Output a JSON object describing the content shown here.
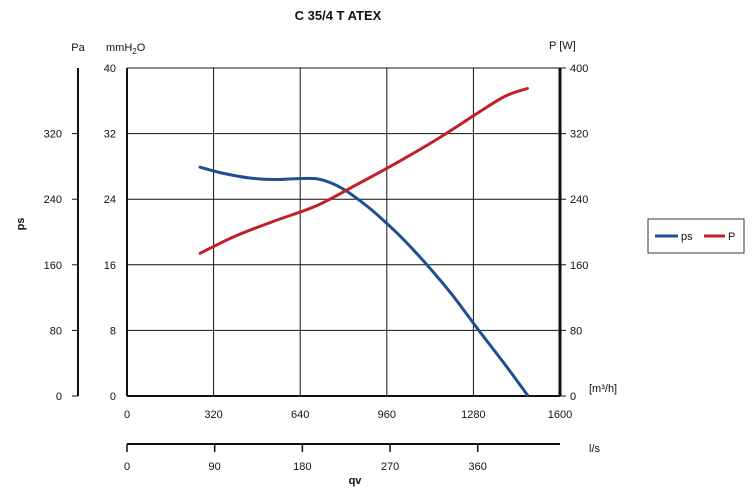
{
  "chart_data": {
    "type": "line",
    "title": "C 35/4 T ATEX",
    "left_axis_pa": {
      "unit": "Pa",
      "ticks": [
        "0",
        "80",
        "160",
        "240",
        "320"
      ],
      "values": [
        0,
        80,
        160,
        240,
        320
      ]
    },
    "left_axis_mmh2o": {
      "unit_main": "mmH",
      "unit_sub": "2",
      "unit_end": "O",
      "ticks": [
        "0",
        "8",
        "16",
        "24",
        "32",
        "40"
      ],
      "values": [
        0,
        8,
        16,
        24,
        32,
        40
      ]
    },
    "ylabel": "ps",
    "right_axis": {
      "unit": "P [W]",
      "ticks": [
        "0",
        "80",
        "160",
        "240",
        "320",
        "400"
      ],
      "values": [
        0,
        80,
        160,
        240,
        320,
        400
      ]
    },
    "x_axis_m3h": {
      "unit": "[m³/h]",
      "ticks": [
        "0",
        "320",
        "640",
        "960",
        "1280",
        "1600"
      ],
      "values": [
        0,
        320,
        640,
        960,
        1280,
        1600
      ]
    },
    "x_axis_ls": {
      "unit": "l/s",
      "ticks": [
        "0",
        "90",
        "180",
        "270",
        "360"
      ],
      "values": [
        0,
        90,
        180,
        270,
        360
      ]
    },
    "xlabel": "qv",
    "xlim": [
      0,
      1600
    ],
    "ylim": [
      0,
      400
    ],
    "grid": true,
    "legend_position": "right",
    "series": [
      {
        "name": "ps",
        "axis": "left",
        "color": "#1f4f8f",
        "x": [
          270,
          350,
          450,
          550,
          620,
          700,
          760,
          820,
          900,
          1000,
          1100,
          1200,
          1300,
          1400,
          1480
        ],
        "y": [
          279,
          272,
          266,
          264,
          265,
          265,
          259,
          248,
          228,
          198,
          163,
          124,
          80,
          37,
          1
        ]
      },
      {
        "name": "P",
        "axis": "right",
        "color": "#c0202a",
        "x": [
          270,
          400,
          550,
          700,
          850,
          1000,
          1150,
          1300,
          1400,
          1480
        ],
        "y": [
          174,
          195,
          214,
          232,
          258,
          285,
          314,
          346,
          366,
          375
        ]
      }
    ]
  }
}
